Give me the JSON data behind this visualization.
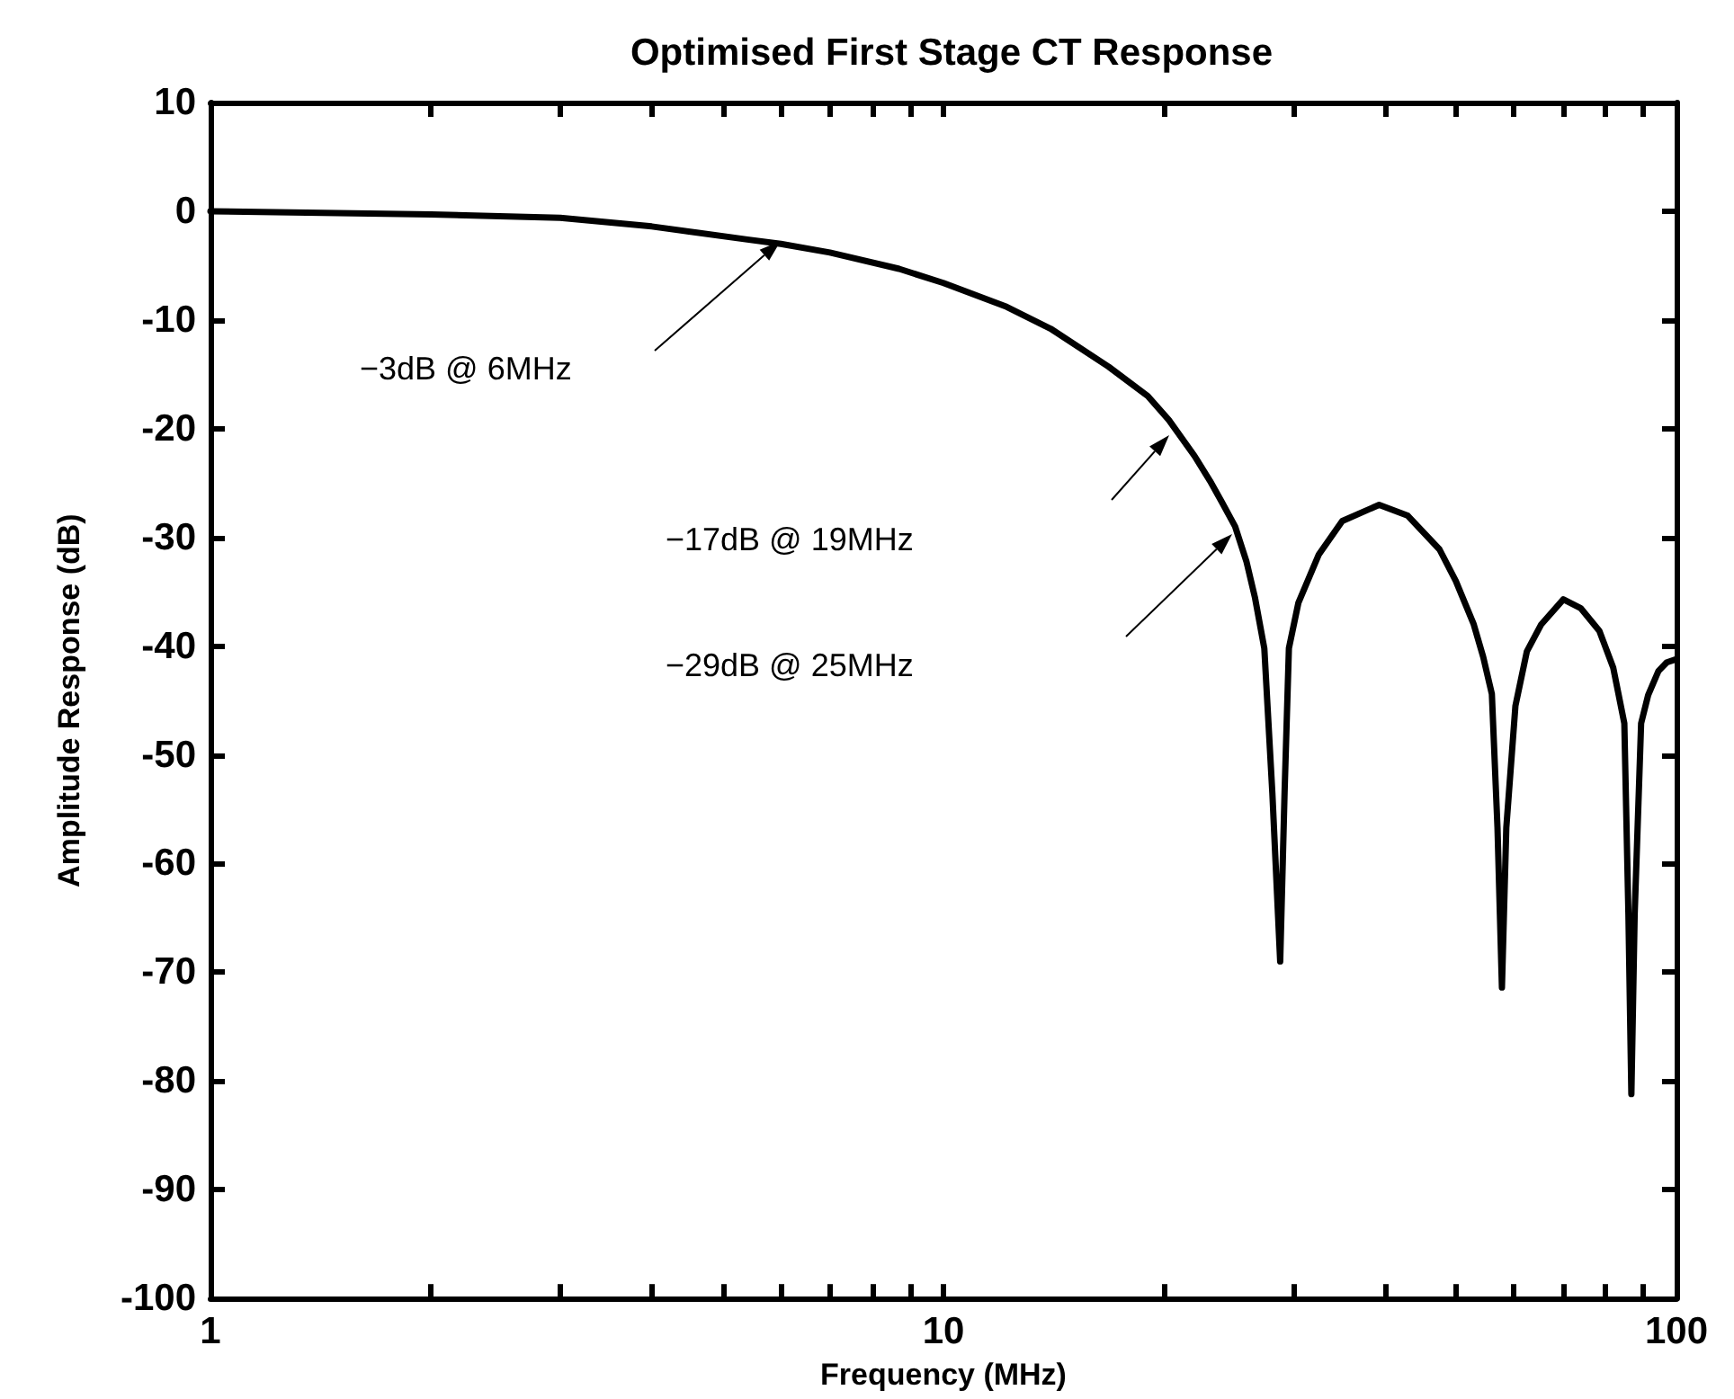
{
  "chart_data": {
    "type": "line",
    "title": "Optimised First Stage CT Response",
    "xlabel": "Frequency (MHz)",
    "ylabel": "Amplitude Response (dB)",
    "log": "x",
    "grid": false,
    "marker": "none",
    "line_style": "solid",
    "xlim": [
      1,
      100
    ],
    "xticks": [
      1,
      {
        "value": 2,
        "label": null
      },
      {
        "value": 3,
        "label": null
      },
      {
        "value": 4,
        "label": null
      },
      {
        "value": 5,
        "label": null
      },
      {
        "value": 6,
        "label": null
      },
      {
        "value": 7,
        "label": null
      },
      {
        "value": 8,
        "label": null
      },
      {
        "value": 9,
        "label": null
      },
      10,
      {
        "value": 20,
        "label": null
      },
      {
        "value": 30,
        "label": null
      },
      {
        "value": 40,
        "label": null
      },
      {
        "value": 50,
        "label": null
      },
      {
        "value": 60,
        "label": null
      },
      {
        "value": 70,
        "label": null
      },
      {
        "value": 80,
        "label": null
      },
      {
        "value": 90,
        "label": null
      },
      100
    ],
    "ylim": [
      -100,
      10
    ],
    "yticks": [
      -100,
      -90,
      -80,
      -70,
      -60,
      -50,
      -40,
      -30,
      -20,
      -10,
      0,
      10
    ],
    "series": [
      {
        "color": "#000000",
        "x": [
          1,
          2,
          3,
          4,
          5.4,
          6,
          7,
          8.7,
          10,
          12.2,
          14,
          16.8,
          19,
          20.3,
          22,
          23.1,
          24,
          25,
          25.9,
          26.6,
          27.4,
          28.1,
          28.8,
          29.2,
          29.6,
          30.5,
          32.5,
          35,
          39.3,
          43,
          47.5,
          50,
          52.9,
          54.5,
          56,
          57,
          57.8,
          58.6,
          60.3,
          62.5,
          65.4,
          70.1,
          74,
          78.5,
          82,
          84.9,
          86,
          86.8,
          87.7,
          89.5,
          91.5,
          94.5,
          97,
          100
        ],
        "values": [
          0,
          -0.3,
          -0.6,
          -1.4,
          -2.6,
          -3,
          -3.8,
          -5.3,
          -6.6,
          -8.8,
          -10.8,
          -14.3,
          -17,
          -19.2,
          -22.5,
          -24.8,
          -26.8,
          -29,
          -32.2,
          -35.5,
          -40.2,
          -53.5,
          -69,
          -53.5,
          -40.2,
          -36,
          -31.6,
          -28.5,
          -27,
          -28,
          -31.1,
          -34,
          -38,
          -41,
          -44.4,
          -56.7,
          -71.4,
          -56.7,
          -45.5,
          -40.5,
          -38,
          -35.7,
          -36.5,
          -38.6,
          -42,
          -47.1,
          -64.7,
          -81.2,
          -64.7,
          -47.1,
          -44.5,
          -42.3,
          -41.5,
          -41.2
        ]
      }
    ],
    "annotations": [
      "−3dB @ 6MHz",
      "−17dB @ 19MHz",
      "−29dB @ 25MHz"
    ]
  }
}
